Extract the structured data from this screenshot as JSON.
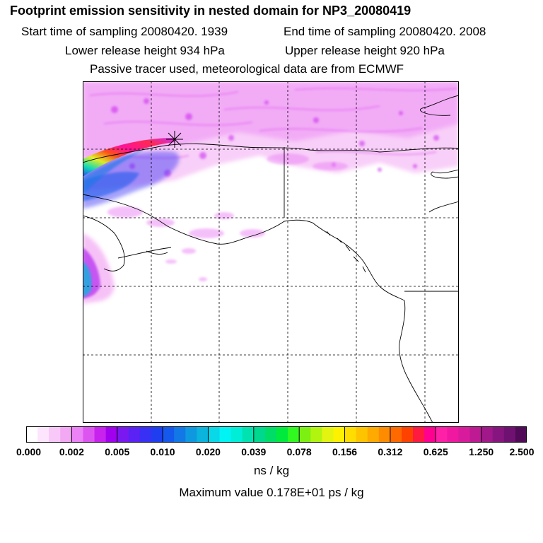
{
  "title": "Footprint emission sensitivity in nested domain for NP3_20080419",
  "header": {
    "start_time": "Start time of sampling 20080420.  1939",
    "end_time": "End time of sampling 20080420.  2008",
    "lower_height": "Lower release height  934 hPa",
    "upper_height": "Upper release height  920 hPa",
    "tracer_info": "Passive tracer used, meteorological data are from ECMWF"
  },
  "colorbar": {
    "colors": [
      "#ffffff",
      "#fde6fd",
      "#f8c8f8",
      "#f3a8f3",
      "#eb82f5",
      "#dd55f0",
      "#c822ee",
      "#a000ee",
      "#7a18f0",
      "#5a22f5",
      "#3830f5",
      "#1e3ef0",
      "#1558ec",
      "#1278e6",
      "#0e98e0",
      "#0ab4dc",
      "#08d8e8",
      "#00f4f4",
      "#00eed8",
      "#00e2b0",
      "#00d890",
      "#00dd66",
      "#00ea3e",
      "#30f820",
      "#7cf010",
      "#b0f410",
      "#e2f410",
      "#fff200",
      "#ffdd00",
      "#ffc400",
      "#ffaa00",
      "#ff8c00",
      "#ff6a00",
      "#ff4200",
      "#ff1a40",
      "#ff0090",
      "#ff20a8",
      "#f018a0",
      "#d81b9c",
      "#be1a94",
      "#a0188a",
      "#861580",
      "#6e1170",
      "#500a58"
    ],
    "labels": [
      "0.000",
      "0.002",
      "0.005",
      "0.010",
      "0.020",
      "0.039",
      "0.078",
      "0.156",
      "0.312",
      "0.625",
      "1.250",
      "2.500"
    ],
    "units": "ns / kg"
  },
  "max_value": "Maximum value  0.178E+01 ps / kg"
}
